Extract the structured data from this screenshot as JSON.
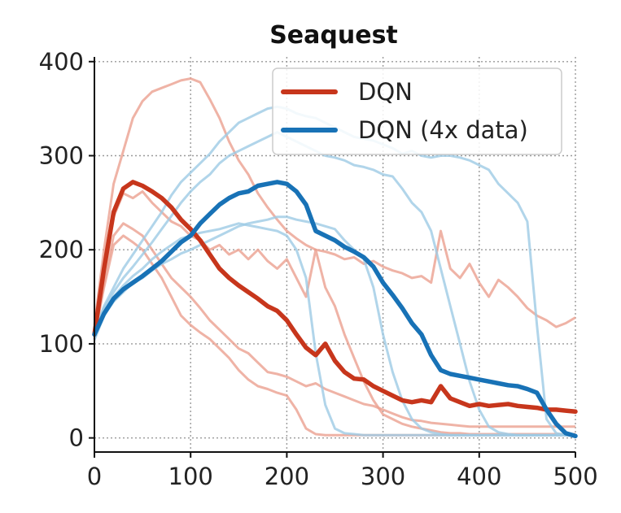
{
  "chart_data": {
    "type": "line",
    "title": "Seaquest",
    "xlabel": "",
    "ylabel": "",
    "xlim": [
      0,
      500
    ],
    "ylim": [
      -15,
      405
    ],
    "xticks": [
      0,
      100,
      200,
      300,
      400,
      500
    ],
    "yticks": [
      0,
      100,
      200,
      300,
      400
    ],
    "grid": true,
    "legend_position": "top-right",
    "colors": {
      "dqn": "#c7361c",
      "dqn_faint": "#eba090",
      "dqn4x": "#1872b6",
      "dqn4x_faint": "#9ecae5"
    },
    "series": [
      {
        "name": "DQN",
        "role": "mean",
        "color": "#c7361c",
        "x": [
          0,
          10,
          20,
          30,
          40,
          50,
          60,
          70,
          80,
          90,
          100,
          110,
          120,
          130,
          140,
          150,
          160,
          170,
          180,
          190,
          200,
          210,
          220,
          230,
          240,
          250,
          260,
          270,
          280,
          290,
          300,
          310,
          320,
          330,
          340,
          350,
          360,
          370,
          380,
          390,
          400,
          410,
          420,
          430,
          440,
          450,
          460,
          470,
          480,
          490,
          500
        ],
        "y": [
          110,
          180,
          240,
          265,
          272,
          268,
          262,
          255,
          245,
          232,
          222,
          210,
          195,
          180,
          170,
          162,
          155,
          148,
          140,
          135,
          125,
          110,
          96,
          88,
          100,
          82,
          70,
          63,
          62,
          55,
          50,
          45,
          40,
          38,
          40,
          38,
          55,
          42,
          38,
          34,
          36,
          34,
          35,
          36,
          34,
          33,
          32,
          30,
          30,
          29,
          28
        ]
      },
      {
        "name": "DQN (4x data)",
        "role": "mean",
        "color": "#1872b6",
        "x": [
          0,
          10,
          20,
          30,
          40,
          50,
          60,
          70,
          80,
          90,
          100,
          110,
          120,
          130,
          140,
          150,
          160,
          170,
          180,
          190,
          200,
          210,
          220,
          230,
          240,
          250,
          260,
          270,
          280,
          290,
          300,
          310,
          320,
          330,
          340,
          350,
          360,
          370,
          380,
          390,
          400,
          410,
          420,
          430,
          440,
          450,
          460,
          470,
          480,
          490,
          500
        ],
        "y": [
          110,
          132,
          148,
          158,
          165,
          172,
          180,
          188,
          198,
          208,
          215,
          228,
          238,
          248,
          255,
          260,
          262,
          268,
          270,
          272,
          270,
          262,
          248,
          220,
          215,
          210,
          203,
          198,
          192,
          182,
          165,
          152,
          138,
          122,
          110,
          88,
          72,
          68,
          66,
          64,
          62,
          60,
          58,
          56,
          55,
          52,
          48,
          30,
          15,
          5,
          2
        ]
      },
      {
        "role": "run",
        "color": "#eba090",
        "x": [
          0,
          10,
          20,
          30,
          40,
          50,
          60,
          70,
          80,
          90,
          100,
          110,
          120,
          130,
          140,
          150,
          160,
          170,
          180,
          190,
          200,
          210,
          220,
          230,
          240,
          250,
          260,
          270,
          280,
          290,
          300,
          310,
          320,
          330,
          340,
          350,
          360,
          370,
          380,
          390,
          400,
          410,
          420,
          430,
          440,
          450,
          460,
          470,
          480,
          490,
          500
        ],
        "y": [
          120,
          200,
          270,
          305,
          340,
          358,
          368,
          372,
          376,
          380,
          382,
          378,
          360,
          340,
          315,
          295,
          280,
          260,
          245,
          232,
          220,
          212,
          205,
          200,
          198,
          195,
          190,
          192,
          185,
          188,
          182,
          178,
          175,
          170,
          172,
          165,
          220,
          180,
          170,
          185,
          165,
          150,
          168,
          160,
          150,
          138,
          130,
          125,
          118,
          122,
          128
        ]
      },
      {
        "role": "run",
        "color": "#eba090",
        "x": [
          0,
          10,
          20,
          30,
          40,
          50,
          60,
          70,
          80,
          90,
          100,
          110,
          120,
          130,
          140,
          150,
          160,
          170,
          180,
          190,
          200,
          210,
          220,
          230,
          240,
          250,
          260,
          270,
          280,
          290,
          300,
          310,
          320,
          330,
          340,
          350,
          360,
          370,
          380,
          390,
          400,
          410,
          420,
          430,
          440,
          450,
          460,
          470,
          480,
          490,
          500
        ],
        "y": [
          110,
          175,
          235,
          260,
          255,
          262,
          250,
          240,
          230,
          225,
          215,
          210,
          200,
          205,
          195,
          200,
          190,
          200,
          188,
          180,
          190,
          170,
          150,
          200,
          160,
          140,
          110,
          85,
          60,
          40,
          25,
          20,
          15,
          12,
          10,
          8,
          6,
          5,
          5,
          4,
          4,
          4,
          4,
          4,
          4,
          4,
          4,
          4,
          4,
          4,
          4
        ]
      },
      {
        "role": "run",
        "color": "#eba090",
        "x": [
          0,
          10,
          20,
          30,
          40,
          50,
          60,
          70,
          80,
          90,
          100,
          110,
          120,
          130,
          140,
          150,
          160,
          170,
          180,
          190,
          200,
          210,
          220,
          230,
          240,
          250,
          260,
          270,
          280,
          290,
          300,
          310,
          320,
          330,
          340,
          350,
          360,
          370,
          380,
          390,
          400,
          410,
          420,
          430,
          440,
          450,
          460,
          470,
          480,
          490,
          500
        ],
        "y": [
          105,
          165,
          215,
          228,
          222,
          215,
          200,
          185,
          170,
          160,
          150,
          138,
          125,
          115,
          105,
          95,
          90,
          80,
          70,
          68,
          65,
          60,
          55,
          58,
          52,
          48,
          44,
          40,
          36,
          34,
          30,
          26,
          22,
          19,
          18,
          16,
          15,
          14,
          13,
          12,
          12,
          12,
          12,
          12,
          12,
          12,
          12,
          12,
          12,
          12,
          12
        ]
      },
      {
        "role": "run",
        "color": "#eba090",
        "x": [
          0,
          10,
          20,
          30,
          40,
          50,
          60,
          70,
          80,
          90,
          100,
          110,
          120,
          130,
          140,
          150,
          160,
          170,
          180,
          190,
          200,
          210,
          220,
          230,
          240,
          250,
          260,
          270,
          280,
          290,
          300,
          310,
          320,
          330,
          340,
          350,
          360,
          370,
          380,
          390,
          400,
          410,
          420,
          430,
          440,
          450,
          460,
          470,
          480,
          490,
          500
        ],
        "y": [
          108,
          160,
          205,
          215,
          208,
          200,
          185,
          170,
          150,
          130,
          120,
          112,
          105,
          95,
          85,
          72,
          62,
          55,
          52,
          48,
          45,
          30,
          10,
          4,
          3,
          3,
          3,
          3,
          3,
          3,
          3,
          3,
          3,
          3,
          3,
          3,
          3,
          3,
          3,
          3,
          3,
          3,
          3,
          3,
          3,
          3,
          3,
          3,
          3,
          3,
          3
        ]
      },
      {
        "role": "run",
        "color": "#9ecae5",
        "x": [
          0,
          10,
          20,
          30,
          40,
          50,
          60,
          70,
          80,
          90,
          100,
          110,
          120,
          130,
          140,
          150,
          160,
          170,
          180,
          190,
          200,
          210,
          220,
          230,
          240,
          250,
          260,
          270,
          280,
          290,
          300,
          310,
          320,
          330,
          340,
          350,
          360,
          370,
          380,
          390,
          400,
          410,
          420,
          430,
          440,
          450,
          460,
          470,
          480,
          490,
          500
        ],
        "y": [
          112,
          140,
          160,
          180,
          195,
          210,
          225,
          240,
          258,
          272,
          282,
          292,
          302,
          315,
          325,
          335,
          340,
          345,
          350,
          352,
          350,
          345,
          342,
          340,
          335,
          330,
          325,
          320,
          318,
          316,
          312,
          308,
          302,
          305,
          300,
          298,
          300,
          300,
          298,
          295,
          290,
          285,
          270,
          260,
          250,
          230,
          120,
          20,
          5,
          3,
          2
        ]
      },
      {
        "role": "run",
        "color": "#9ecae5",
        "x": [
          0,
          10,
          20,
          30,
          40,
          50,
          60,
          70,
          80,
          90,
          100,
          110,
          120,
          130,
          140,
          150,
          160,
          170,
          180,
          190,
          200,
          210,
          220,
          230,
          240,
          250,
          260,
          270,
          280,
          290,
          300,
          310,
          320,
          330,
          340,
          350,
          360,
          370,
          380,
          390,
          400,
          410,
          420,
          430,
          440,
          450,
          460,
          470,
          480,
          490,
          500
        ],
        "y": [
          108,
          138,
          155,
          170,
          182,
          195,
          208,
          222,
          236,
          250,
          262,
          272,
          280,
          292,
          300,
          305,
          310,
          315,
          320,
          325,
          320,
          315,
          310,
          305,
          300,
          298,
          295,
          290,
          288,
          285,
          280,
          278,
          265,
          250,
          240,
          220,
          180,
          140,
          100,
          60,
          30,
          12,
          6,
          4,
          3,
          3,
          3,
          3,
          3,
          3,
          3
        ]
      },
      {
        "role": "run",
        "color": "#9ecae5",
        "x": [
          0,
          10,
          20,
          30,
          40,
          50,
          60,
          70,
          80,
          90,
          100,
          110,
          120,
          130,
          140,
          150,
          160,
          170,
          180,
          190,
          200,
          210,
          220,
          230,
          240,
          250,
          260,
          270,
          280,
          290,
          300,
          310,
          320,
          330,
          340,
          350,
          360,
          370,
          380,
          390,
          400,
          410,
          420,
          430,
          440,
          450,
          460,
          470,
          480,
          490,
          500
        ],
        "y": [
          106,
          135,
          150,
          162,
          172,
          180,
          190,
          198,
          205,
          212,
          215,
          218,
          220,
          222,
          225,
          228,
          226,
          224,
          222,
          220,
          215,
          200,
          170,
          90,
          35,
          10,
          5,
          4,
          3,
          3,
          3,
          3,
          3,
          3,
          3,
          3,
          3,
          3,
          3,
          3,
          3,
          3,
          3,
          3,
          3,
          3,
          3,
          3,
          3,
          3,
          3
        ]
      },
      {
        "role": "run",
        "color": "#9ecae5",
        "x": [
          0,
          10,
          20,
          30,
          40,
          50,
          60,
          70,
          80,
          90,
          100,
          110,
          120,
          130,
          140,
          150,
          160,
          170,
          180,
          190,
          200,
          210,
          220,
          230,
          240,
          250,
          260,
          270,
          280,
          290,
          300,
          310,
          320,
          330,
          340,
          350,
          360,
          370,
          380,
          390,
          400,
          410,
          420,
          430,
          440,
          450,
          460,
          470,
          480,
          490,
          500
        ],
        "y": [
          104,
          130,
          145,
          155,
          165,
          170,
          178,
          185,
          190,
          196,
          200,
          205,
          210,
          215,
          220,
          225,
          228,
          230,
          232,
          235,
          235,
          232,
          230,
          228,
          225,
          222,
          210,
          200,
          190,
          160,
          110,
          70,
          40,
          20,
          10,
          6,
          4,
          3,
          3,
          3,
          3,
          3,
          3,
          3,
          3,
          3,
          3,
          3,
          3,
          3,
          3
        ]
      }
    ]
  }
}
